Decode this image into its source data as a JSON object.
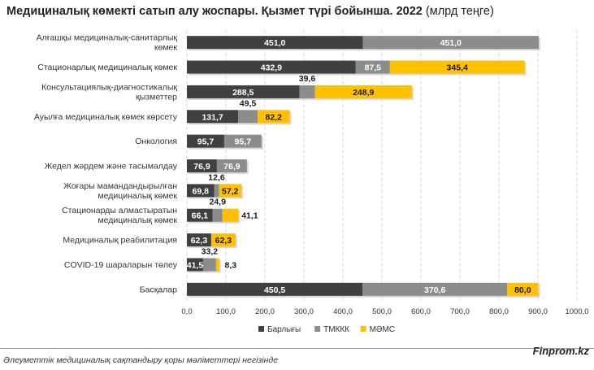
{
  "title": "Медициналық көмекті сатып алу жоспары. Қызмет түрі бойынша. 2022",
  "title_unit": "(млрд теңге)",
  "chart_data": {
    "type": "bar",
    "orientation": "horizontal",
    "stacked": false,
    "categories": [
      [
        "Алғашқы медициналық-санитарлық",
        "көмек"
      ],
      [
        "Стационарлық медициналық көмек"
      ],
      [
        "Консультациялық-диагностикалық",
        "қызметтер"
      ],
      [
        "Ауылға медициналық көмек көрсету"
      ],
      [
        "Онкология"
      ],
      [
        "Жедел жәрдем және тасымалдау"
      ],
      [
        "Жоғары мамандандырылған",
        "медициналық көмек"
      ],
      [
        "Стационарды алмастыратын",
        "медициналық көмек"
      ],
      [
        "Медициналық реабилитация"
      ],
      [
        "COVID-19 шараларын төлеу"
      ],
      [
        "Басқалар"
      ]
    ],
    "series": [
      {
        "name": "Барлығы",
        "color": "#404040",
        "values": [
          451.0,
          432.9,
          288.5,
          131.7,
          95.7,
          76.9,
          69.8,
          66.1,
          62.3,
          41.5,
          450.5
        ]
      },
      {
        "name": "ТМККК",
        "color": "#8c8c8c",
        "values": [
          451.0,
          87.5,
          39.6,
          49.5,
          95.7,
          76.9,
          12.6,
          24.9,
          null,
          33.2,
          370.6
        ]
      },
      {
        "name": "МӘМС",
        "color": "#ffc000",
        "values": [
          null,
          345.4,
          248.9,
          82.2,
          null,
          null,
          57.2,
          41.1,
          62.3,
          8.3,
          80.0
        ]
      }
    ],
    "value_labels": [
      [
        "451,0",
        "451,0",
        ""
      ],
      [
        "432,9",
        "87,5",
        "345,4"
      ],
      [
        "288,5",
        "39,6",
        "248,9"
      ],
      [
        "131,7",
        "49,5",
        "82,2"
      ],
      [
        "95,7",
        "95,7",
        ""
      ],
      [
        "76,9",
        "76,9",
        ""
      ],
      [
        "69,8",
        "12,6",
        "57,2"
      ],
      [
        "66,1",
        "24,9",
        "41,1"
      ],
      [
        "62,3",
        "",
        "62,3"
      ],
      [
        "41,5",
        "33,2",
        "8,3"
      ],
      [
        "450,5",
        "370,6",
        "80,0"
      ]
    ],
    "xlim": [
      0,
      1000
    ],
    "xticks": [
      "0,0",
      "100,0",
      "200,0",
      "300,0",
      "400,0",
      "500,0",
      "600,0",
      "700,0",
      "800,0",
      "900,0",
      "1000,0"
    ],
    "grid": "vertical-dashed",
    "legend": "bottom-right"
  },
  "footer": {
    "source": "Әлеуметтік медициналық сақтандыру қоры мәліметтері негізінде",
    "brand": "Finprom.kz"
  }
}
